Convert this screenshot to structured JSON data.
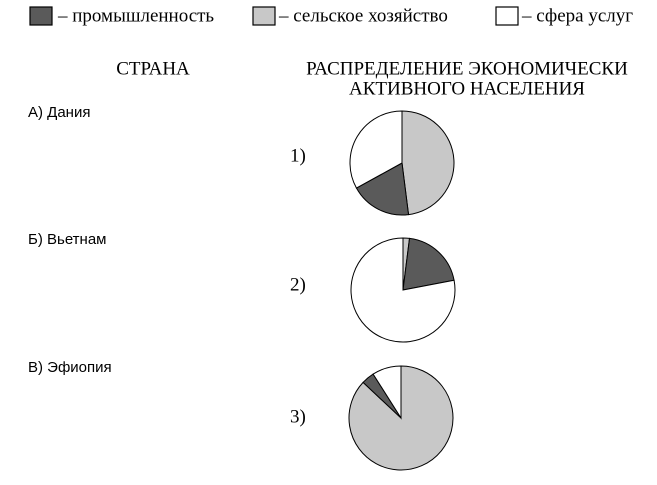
{
  "legend": {
    "labels": [
      "– промышленность",
      "– сельское хозяйство",
      "– сфера услуг"
    ],
    "colors": [
      "#5a5a5a",
      "#c8c8c8",
      "#ffffff"
    ]
  },
  "column_headers": {
    "country": "СТРАНА",
    "distribution": [
      "РАСПРЕДЕЛЕНИЕ ЭКОНОМИЧЕСКИ",
      "АКТИВНОГО НАСЕЛЕНИЯ"
    ]
  },
  "countries": [
    "А) Дания",
    "Б)  Вьетнам",
    "В)  Эфиопия"
  ],
  "chart_data": [
    {
      "type": "pie",
      "label": "1)",
      "values": [
        19,
        48,
        33
      ]
    },
    {
      "type": "pie",
      "label": "2)",
      "values": [
        20,
        2,
        78
      ]
    },
    {
      "type": "pie",
      "label": "3)",
      "values": [
        4,
        87,
        9
      ]
    }
  ]
}
